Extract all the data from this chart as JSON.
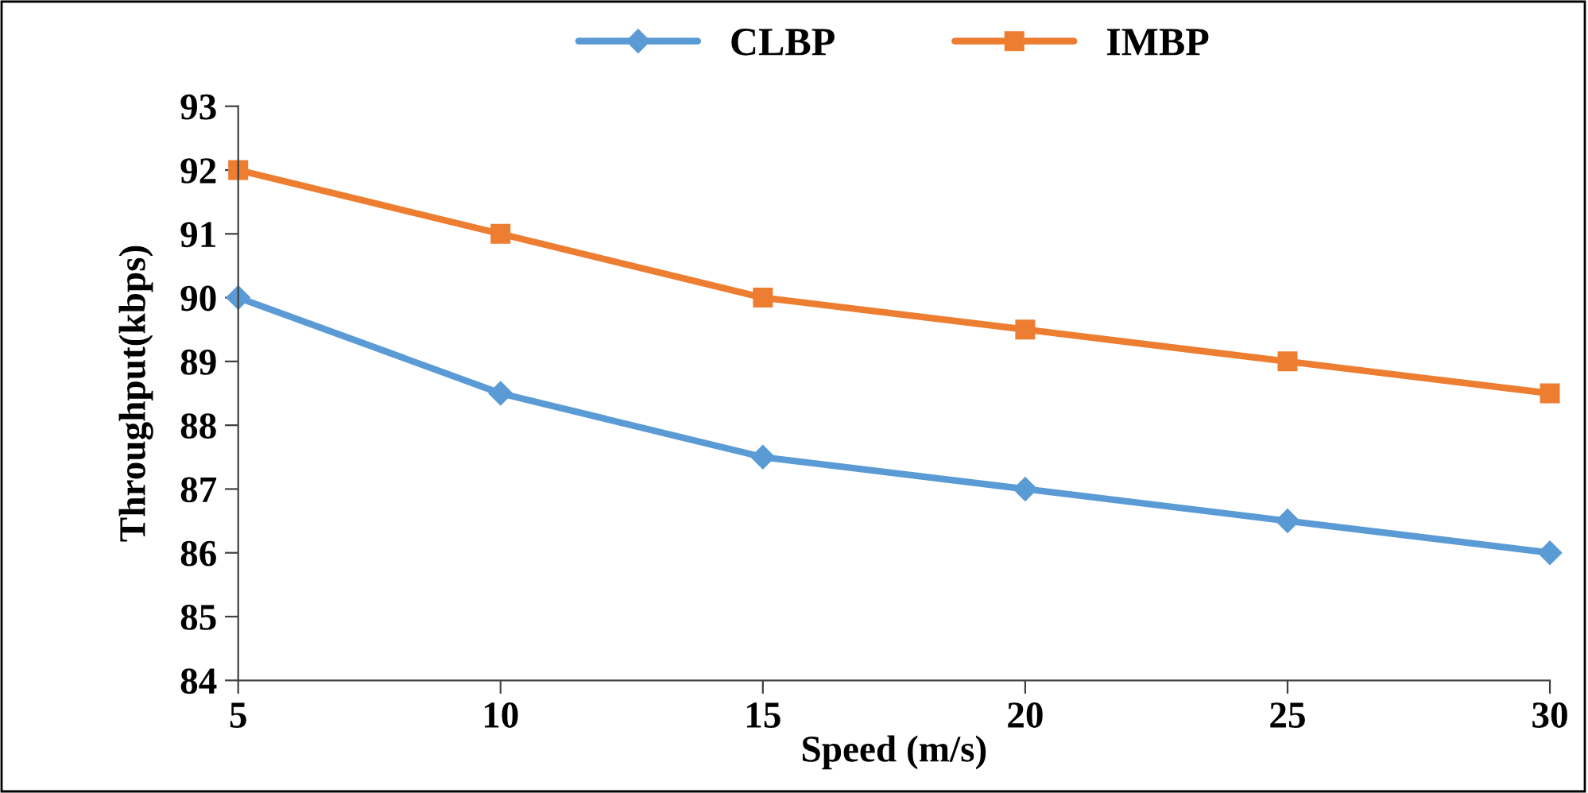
{
  "chart_data": {
    "type": "line",
    "xlabel": "Speed (m/s)",
    "ylabel": "Throughput(kbps)",
    "x": [
      5,
      10,
      15,
      20,
      25,
      30
    ],
    "series": [
      {
        "name": "CLBP",
        "color": "#5b9bd5",
        "marker": "diamond",
        "values": [
          90,
          88.5,
          87.5,
          87,
          86.5,
          86
        ]
      },
      {
        "name": "IMBP",
        "color": "#ed7d31",
        "marker": "square",
        "values": [
          92,
          91,
          90,
          89.5,
          89,
          88.5
        ]
      }
    ],
    "xlim": [
      5,
      30
    ],
    "xticks": [
      5,
      10,
      15,
      20,
      25,
      30
    ],
    "ylim": [
      84,
      93
    ],
    "yticks": [
      84,
      85,
      86,
      87,
      88,
      89,
      90,
      91,
      92,
      93
    ],
    "grid": false,
    "legend": "top",
    "line_style": "solid"
  }
}
